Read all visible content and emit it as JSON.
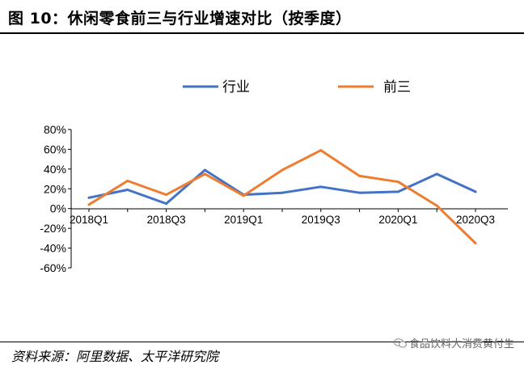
{
  "figure": {
    "title": "图 10：休闲零食前三与行业增速对比（按季度）",
    "source": "资料来源：阿里数据、太平洋研究院",
    "watermark": "食品饮料大消费黄付生"
  },
  "chart_data": {
    "type": "line",
    "categories": [
      "2018Q1",
      "2018Q2",
      "2018Q3",
      "2018Q4",
      "2019Q1",
      "2019Q2",
      "2019Q3",
      "2019Q4",
      "2020Q1",
      "2020Q2",
      "2020Q3"
    ],
    "x_tick_labels": [
      "2018Q1",
      "2018Q3",
      "2019Q1",
      "2019Q3",
      "2020Q1",
      "2020Q3"
    ],
    "y_tick_labels": [
      "80%",
      "60%",
      "40%",
      "20%",
      "0%",
      "-20%",
      "-40%",
      "-60%"
    ],
    "ylim": [
      -0.6,
      0.8
    ],
    "legend_position": "top",
    "series": [
      {
        "name": "行业",
        "color": "#4472C4",
        "values": [
          0.11,
          0.19,
          0.05,
          0.39,
          0.14,
          0.16,
          0.22,
          0.16,
          0.17,
          0.35,
          0.17
        ]
      },
      {
        "name": "前三",
        "color": "#ED7D31",
        "values": [
          0.04,
          0.28,
          0.14,
          0.35,
          0.13,
          0.39,
          0.59,
          0.33,
          0.27,
          0.03,
          -0.35
        ]
      }
    ]
  }
}
